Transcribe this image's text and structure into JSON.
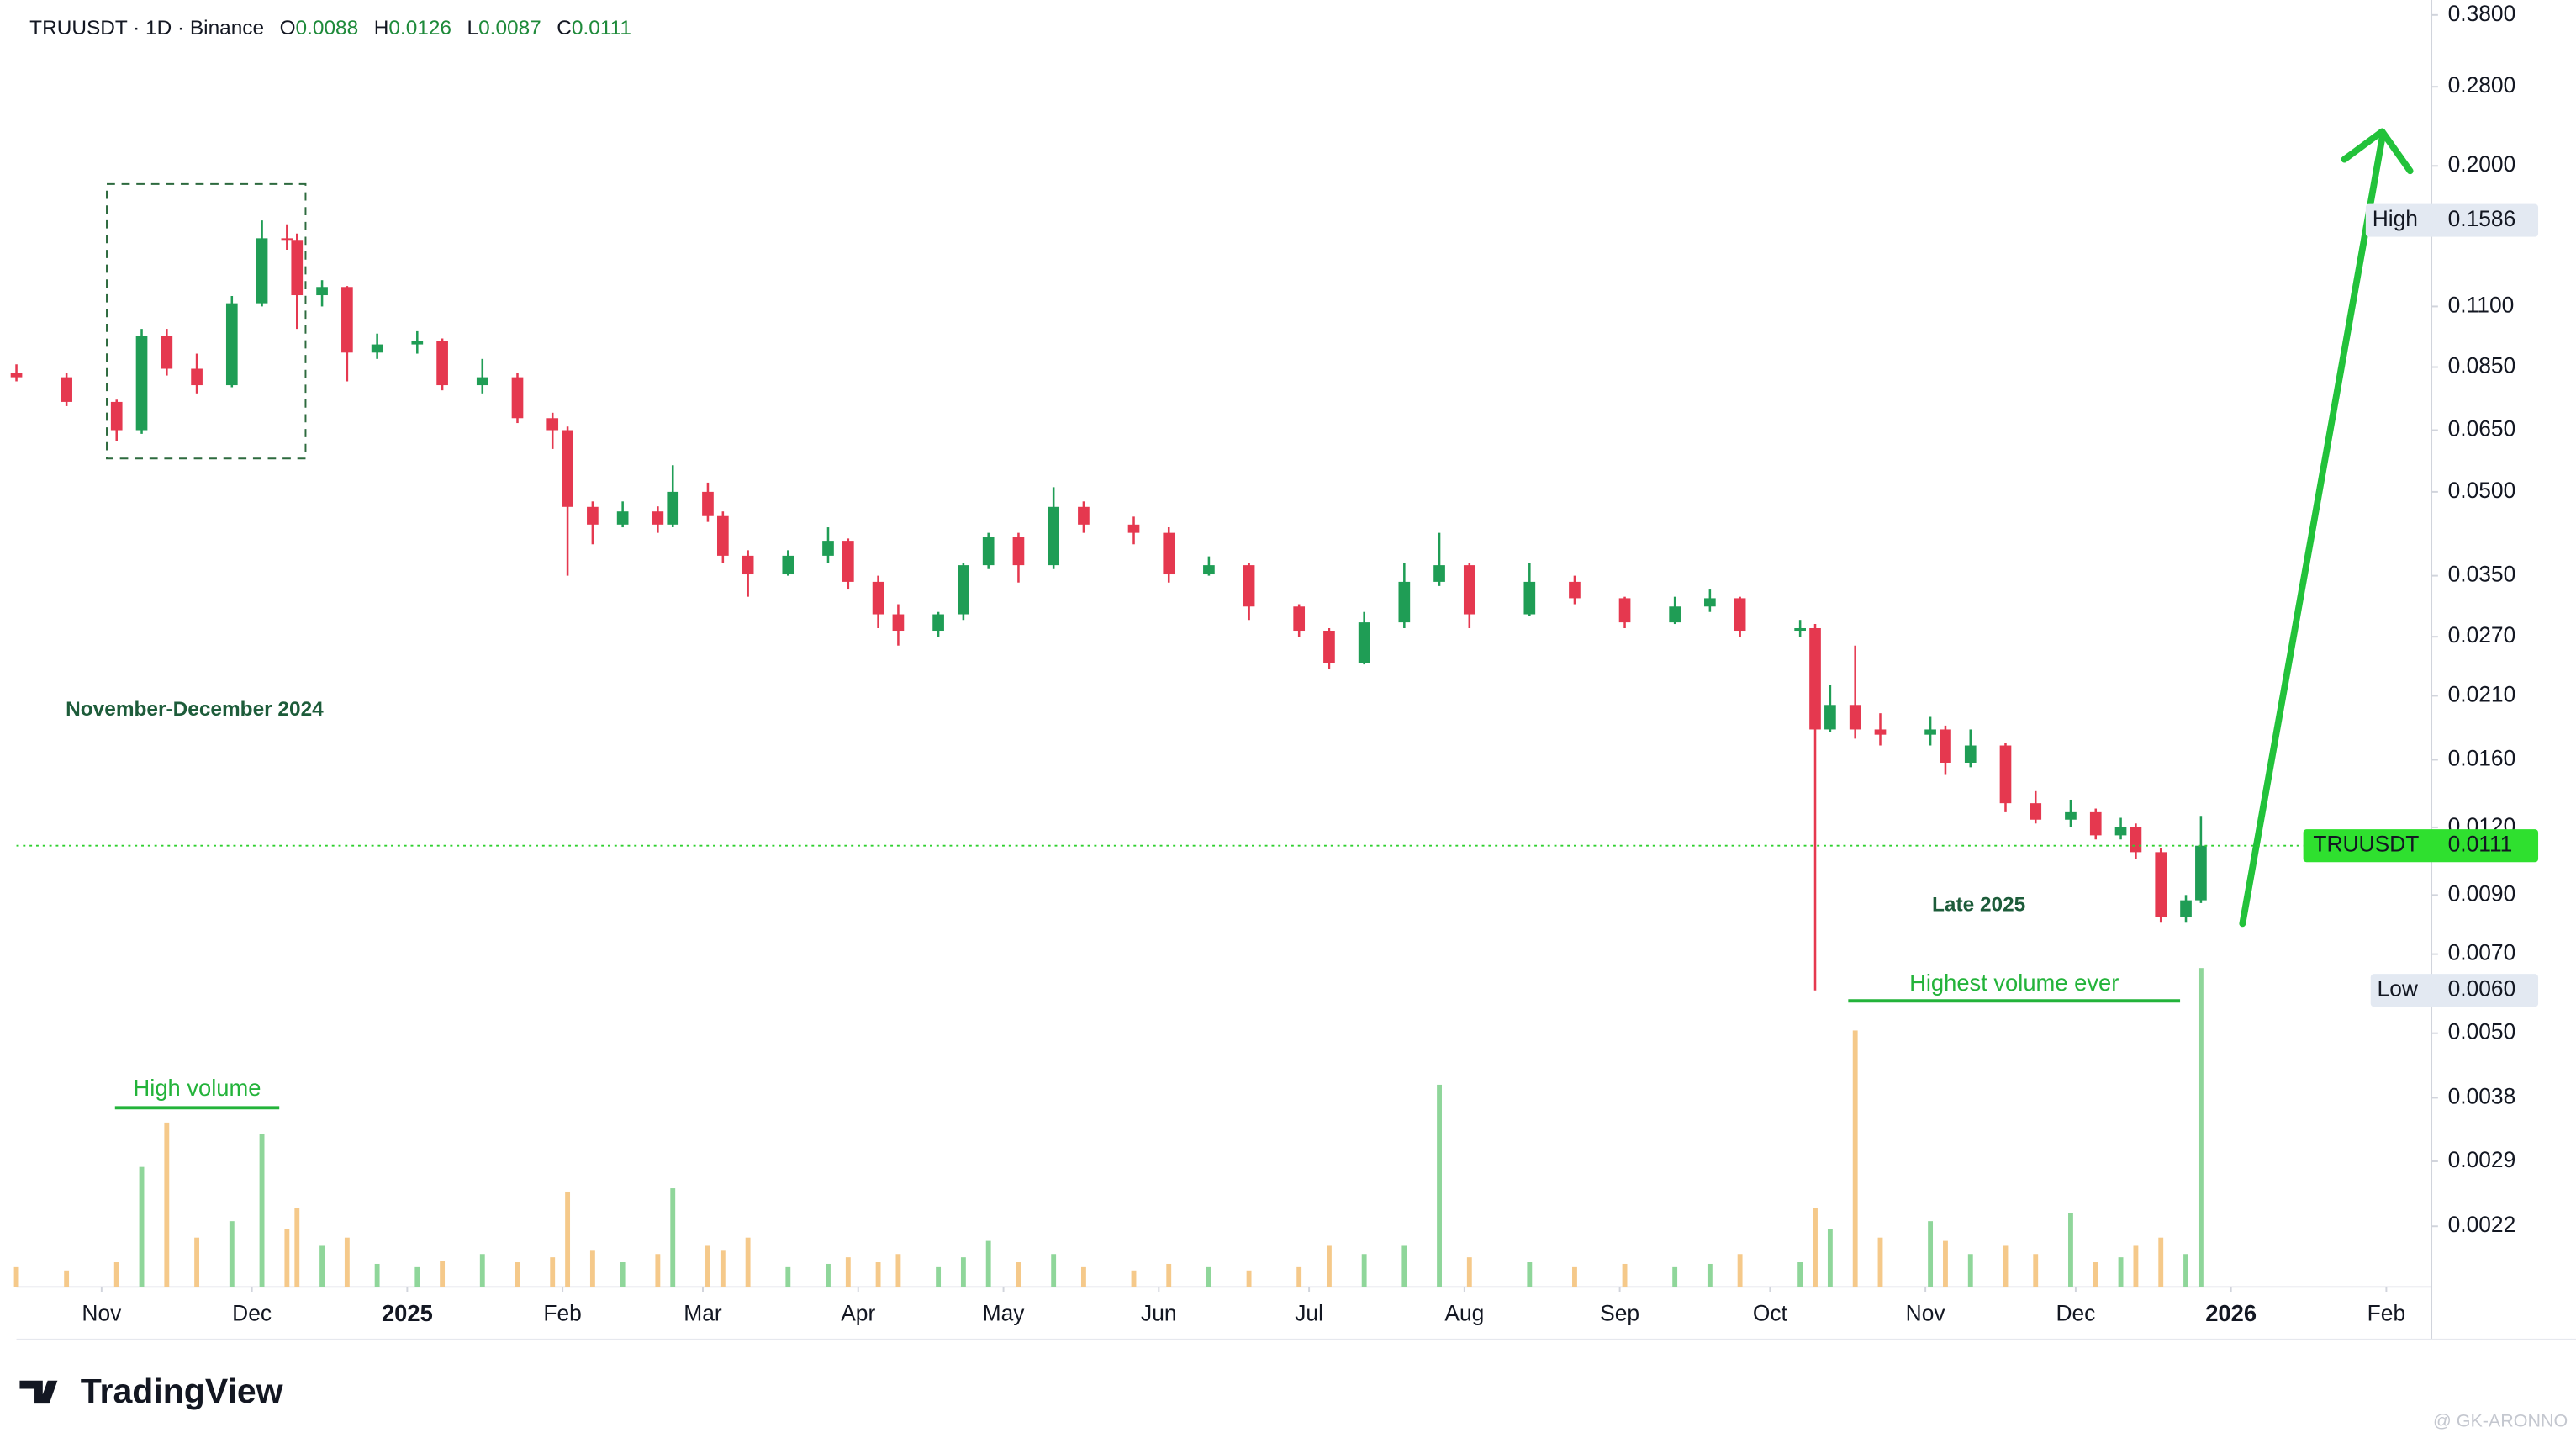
{
  "chart_data": {
    "type": "candlestick",
    "title": "TRUUSDT · 1D · Binance",
    "ohlc_labels": [
      "O",
      "H",
      "L",
      "C"
    ],
    "x": [
      0,
      10,
      20,
      25,
      30,
      36,
      43,
      49,
      54,
      56,
      61,
      66,
      72,
      80,
      85,
      93,
      100,
      107,
      110,
      115,
      121,
      128,
      131,
      138,
      141,
      146,
      154,
      162,
      166,
      172,
      176,
      184,
      189,
      194,
      200,
      207,
      213,
      223,
      230,
      238,
      246,
      256,
      262,
      269,
      277,
      284,
      290,
      302,
      311,
      321,
      331,
      338,
      344,
      356,
      359,
      362,
      367,
      372,
      382,
      385,
      390,
      397,
      403,
      410,
      415,
      420,
      423,
      428,
      433,
      436
    ],
    "open": [
      0.083,
      0.0814,
      0.0733,
      0.065,
      0.0969,
      0.0844,
      0.0787,
      0.1115,
      0.147,
      0.146,
      0.1154,
      0.1195,
      0.0904,
      0.0936,
      0.095,
      0.0787,
      0.0814,
      0.0684,
      0.065,
      0.0469,
      0.0435,
      0.046,
      0.0435,
      0.05,
      0.0451,
      0.0381,
      0.0352,
      0.0381,
      0.0406,
      0.0341,
      0.0297,
      0.0277,
      0.0297,
      0.0366,
      0.0412,
      0.0366,
      0.0469,
      0.0435,
      0.042,
      0.0352,
      0.0366,
      0.0307,
      0.0277,
      0.0241,
      0.0287,
      0.0341,
      0.0366,
      0.0297,
      0.0341,
      0.0318,
      0.0287,
      0.0307,
      0.0318,
      0.0277,
      0.028,
      0.0182,
      0.0202,
      0.0182,
      0.0178,
      0.0182,
      0.0158,
      0.017,
      0.0133,
      0.0124,
      0.0128,
      0.0116,
      0.012,
      0.0108,
      0.0082,
      0.0088
    ],
    "high": [
      0.086,
      0.083,
      0.074,
      0.1,
      0.1,
      0.09,
      0.115,
      0.1586,
      0.156,
      0.15,
      0.123,
      0.12,
      0.098,
      0.099,
      0.096,
      0.088,
      0.083,
      0.07,
      0.066,
      0.048,
      0.048,
      0.047,
      0.056,
      0.052,
      0.046,
      0.039,
      0.039,
      0.043,
      0.041,
      0.035,
      0.031,
      0.03,
      0.037,
      0.042,
      0.042,
      0.051,
      0.048,
      0.045,
      0.043,
      0.038,
      0.037,
      0.031,
      0.028,
      0.03,
      0.037,
      0.042,
      0.037,
      0.037,
      0.035,
      0.032,
      0.032,
      0.033,
      0.032,
      0.029,
      0.0285,
      0.022,
      0.026,
      0.0195,
      0.0192,
      0.0185,
      0.0182,
      0.0172,
      0.014,
      0.0135,
      0.013,
      0.0125,
      0.0122,
      0.011,
      0.009,
      0.0126
    ],
    "low": [
      0.08,
      0.072,
      0.062,
      0.064,
      0.082,
      0.076,
      0.078,
      0.11,
      0.14,
      0.1,
      0.11,
      0.08,
      0.088,
      0.09,
      0.077,
      0.076,
      0.067,
      0.06,
      0.035,
      0.04,
      0.043,
      0.042,
      0.043,
      0.044,
      0.037,
      0.032,
      0.035,
      0.037,
      0.033,
      0.028,
      0.026,
      0.027,
      0.029,
      0.036,
      0.034,
      0.036,
      0.042,
      0.04,
      0.034,
      0.035,
      0.029,
      0.027,
      0.0235,
      0.024,
      0.028,
      0.0335,
      0.028,
      0.0295,
      0.031,
      0.028,
      0.0285,
      0.03,
      0.027,
      0.027,
      0.006,
      0.018,
      0.0175,
      0.017,
      0.017,
      0.015,
      0.0155,
      0.0128,
      0.0122,
      0.012,
      0.0114,
      0.0114,
      0.0105,
      0.008,
      0.008,
      0.0087
    ],
    "close": [
      0.0814,
      0.0733,
      0.065,
      0.0969,
      0.0844,
      0.0787,
      0.1115,
      0.147,
      0.146,
      0.1154,
      0.1195,
      0.0904,
      0.0936,
      0.095,
      0.0787,
      0.0814,
      0.0684,
      0.065,
      0.0469,
      0.0435,
      0.046,
      0.0435,
      0.05,
      0.0451,
      0.0381,
      0.0352,
      0.0381,
      0.0406,
      0.0341,
      0.0297,
      0.0277,
      0.0297,
      0.0366,
      0.0412,
      0.0366,
      0.0469,
      0.0435,
      0.042,
      0.0352,
      0.0366,
      0.0307,
      0.0277,
      0.0241,
      0.0287,
      0.0341,
      0.0366,
      0.0297,
      0.0341,
      0.0318,
      0.0287,
      0.0307,
      0.0318,
      0.0277,
      0.028,
      0.0182,
      0.0202,
      0.0182,
      0.0178,
      0.0182,
      0.0158,
      0.017,
      0.0133,
      0.0124,
      0.0128,
      0.0116,
      0.012,
      0.0108,
      0.0082,
      0.0088,
      0.0111
    ],
    "volume": [
      12,
      10,
      15,
      73,
      100,
      30,
      40,
      93,
      35,
      48,
      25,
      30,
      14,
      12,
      16,
      20,
      15,
      18,
      58,
      22,
      15,
      20,
      60,
      25,
      22,
      30,
      12,
      14,
      18,
      15,
      20,
      12,
      18,
      28,
      15,
      20,
      12,
      10,
      14,
      12,
      10,
      12,
      25,
      20,
      25,
      123,
      18,
      15,
      12,
      14,
      12,
      14,
      20,
      15,
      48,
      35,
      156,
      30,
      40,
      28,
      20,
      25,
      20,
      45,
      15,
      18,
      25,
      30,
      20,
      194
    ],
    "up_color": "#1f9d55",
    "down_color": "#e5384f",
    "volume_up_color": "#8fd69a",
    "volume_down_color": "#f5c98a",
    "xlim": [
      0,
      482
    ],
    "xticks": [
      {
        "value": 17,
        "label": "Nov"
      },
      {
        "value": 47,
        "label": "Dec"
      },
      {
        "value": 78,
        "label": "2025"
      },
      {
        "value": 109,
        "label": "Feb"
      },
      {
        "value": 137,
        "label": "Mar"
      },
      {
        "value": 168,
        "label": "Apr"
      },
      {
        "value": 197,
        "label": "May"
      },
      {
        "value": 228,
        "label": "Jun"
      },
      {
        "value": 258,
        "label": "Jul"
      },
      {
        "value": 289,
        "label": "Aug"
      },
      {
        "value": 320,
        "label": "Sep"
      },
      {
        "value": 350,
        "label": "Oct"
      },
      {
        "value": 381,
        "label": "Nov"
      },
      {
        "value": 411,
        "label": "Dec"
      },
      {
        "value": 442,
        "label": "2026"
      },
      {
        "value": 473,
        "label": "Feb"
      }
    ],
    "ylim": [
      0.0017,
      0.405
    ],
    "log_scale": true,
    "grid": false,
    "yticks": [
      {
        "value": 0.38,
        "label": "0.3800"
      },
      {
        "value": 0.28,
        "label": "0.2800"
      },
      {
        "value": 0.2,
        "label": "0.2000"
      },
      {
        "value": 0.11,
        "label": "0.1100"
      },
      {
        "value": 0.085,
        "label": "0.0850"
      },
      {
        "value": 0.065,
        "label": "0.0650"
      },
      {
        "value": 0.05,
        "label": "0.0500"
      },
      {
        "value": 0.035,
        "label": "0.0350"
      },
      {
        "value": 0.027,
        "label": "0.0270"
      },
      {
        "value": 0.021,
        "label": "0.0210"
      },
      {
        "value": 0.016,
        "label": "0.0160"
      },
      {
        "value": 0.012,
        "label": "0.0120"
      },
      {
        "value": 0.009,
        "label": "0.0090"
      },
      {
        "value": 0.007,
        "label": "0.0070"
      },
      {
        "value": 0.005,
        "label": "0.0050"
      },
      {
        "value": 0.0038,
        "label": "0.0038"
      },
      {
        "value": 0.0029,
        "label": "0.0029"
      },
      {
        "value": 0.0022,
        "label": "0.0022"
      }
    ],
    "price_labels": [
      {
        "name": "High",
        "value": 0.1586,
        "label": "0.1586",
        "color": "#e3e9f2"
      },
      {
        "name": "Low",
        "value": 0.006,
        "label": "0.0060",
        "color": "#e3e9f2"
      },
      {
        "name": "TRUUSDT",
        "value": 0.0111,
        "label": "0.0111",
        "color": "#2fe02f"
      }
    ],
    "annotations": [
      {
        "text": "November-December 2024",
        "color": "#1d5c3a"
      },
      {
        "text": "Late 2025",
        "color": "#1d5c3a"
      },
      {
        "text": "High volume",
        "color": "#23b33a"
      },
      {
        "text": "Highest volume ever",
        "color": "#23b33a"
      }
    ],
    "branding": "TradingView",
    "watermark": "@ GK-ARONNO"
  }
}
